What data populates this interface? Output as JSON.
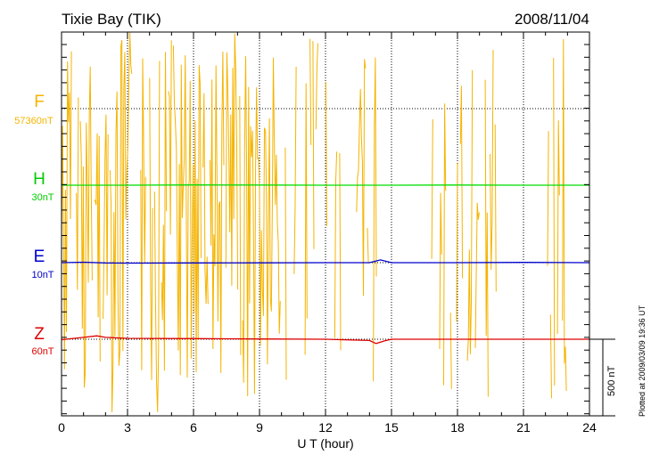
{
  "header": {
    "station": "Tixie Bay (TIK)",
    "date": "2008/11/04"
  },
  "chart_data": {
    "type": "line",
    "title": "Tixie Bay (TIK)",
    "xlabel": "U T (hour)",
    "xlim": [
      0,
      24
    ],
    "xticks": [
      "0",
      "3",
      "6",
      "9",
      "12",
      "15",
      "18",
      "21",
      "24"
    ],
    "grid": true,
    "scale_bar": "500 nT",
    "plotted_note": "Plotted at 2009/03/09 19:36 UT",
    "channels": [
      {
        "name": "F",
        "baseline": "57360nT",
        "color": "#f5b400"
      },
      {
        "name": "H",
        "baseline": "30nT",
        "color": "#00dd00"
      },
      {
        "name": "E",
        "baseline": "10nT",
        "color": "#0000cc"
      },
      {
        "name": "Z",
        "baseline": "60nT",
        "color": "#dd0000"
      }
    ],
    "series": [
      {
        "name": "H",
        "x": [
          0,
          3,
          6,
          9,
          12,
          15,
          18,
          21,
          24
        ],
        "values": [
          0,
          0,
          2,
          1,
          0,
          0,
          1,
          0,
          0
        ]
      },
      {
        "name": "E",
        "x": [
          0,
          1,
          2,
          3,
          6,
          9,
          12,
          14,
          14.5,
          15,
          18,
          21,
          24
        ],
        "values": [
          0,
          3,
          -2,
          -3,
          -2,
          -1,
          0,
          0,
          18,
          0,
          0,
          2,
          0
        ]
      },
      {
        "name": "Z",
        "x": [
          0,
          1,
          1.6,
          2,
          3,
          6,
          9,
          12,
          14,
          14.3,
          14.7,
          15,
          18,
          21,
          24
        ],
        "values": [
          -3,
          12,
          22,
          12,
          6,
          4,
          2,
          0,
          -8,
          -28,
          -10,
          0,
          0,
          0,
          0
        ]
      }
    ]
  }
}
